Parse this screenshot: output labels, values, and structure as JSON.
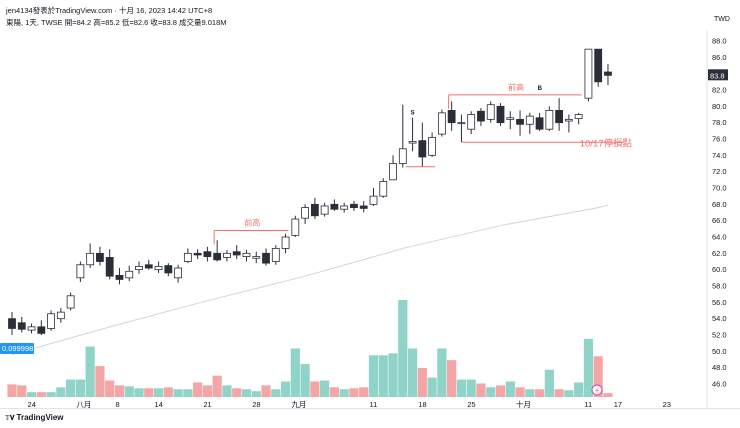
{
  "header": {
    "title_line": "jen4134發表於TradingView.com · 十月 16, 2023 14:42 UTC+8",
    "symbol_line": "東陽, 1天, TWSE  開=84.2  高=85.2  低=82.6  收=83.8  成交量9.018M",
    "currency": "TWD"
  },
  "footer": {
    "logo_text": "TradingView"
  },
  "chart_data": {
    "type": "candlestick",
    "ylim": [
      44,
      90
    ],
    "yticks": [
      46,
      48,
      50,
      52,
      54,
      56,
      58,
      60,
      62,
      64,
      66,
      68,
      70,
      72,
      74,
      76,
      78,
      80,
      82,
      84,
      86,
      88
    ],
    "xtick_labels": [
      {
        "label": "24",
        "idx": 2
      },
      {
        "label": "八月",
        "idx": 7
      },
      {
        "label": "8",
        "idx": 11
      },
      {
        "label": "14",
        "idx": 15
      },
      {
        "label": "21",
        "idx": 20
      },
      {
        "label": "28",
        "idx": 25
      },
      {
        "label": "九月",
        "idx": 29
      },
      {
        "label": "11",
        "idx": 37
      },
      {
        "label": "18",
        "idx": 42
      },
      {
        "label": "25",
        "idx": 47
      },
      {
        "label": "十月",
        "idx": 52
      },
      {
        "label": "11",
        "idx": 59
      },
      {
        "label": "17",
        "idx": 62
      },
      {
        "label": "23",
        "idx": 67
      }
    ],
    "candles": [
      {
        "o": 54.0,
        "h": 54.8,
        "l": 52.0,
        "c": 52.8
      },
      {
        "o": 53.5,
        "h": 54.2,
        "l": 52.3,
        "c": 52.7
      },
      {
        "o": 52.6,
        "h": 53.4,
        "l": 52.2,
        "c": 53.0
      },
      {
        "o": 53.0,
        "h": 53.8,
        "l": 52.0,
        "c": 52.2
      },
      {
        "o": 52.8,
        "h": 55.0,
        "l": 52.5,
        "c": 54.6
      },
      {
        "o": 54.0,
        "h": 55.3,
        "l": 53.5,
        "c": 54.8
      },
      {
        "o": 55.3,
        "h": 57.2,
        "l": 55.0,
        "c": 56.8
      },
      {
        "o": 59.0,
        "h": 61.0,
        "l": 58.5,
        "c": 60.6
      },
      {
        "o": 60.6,
        "h": 63.2,
        "l": 60.2,
        "c": 62.0
      },
      {
        "o": 62.0,
        "h": 62.8,
        "l": 60.5,
        "c": 61.0
      },
      {
        "o": 61.5,
        "h": 62.5,
        "l": 58.8,
        "c": 59.2
      },
      {
        "o": 59.3,
        "h": 60.2,
        "l": 58.2,
        "c": 58.8
      },
      {
        "o": 59.0,
        "h": 60.5,
        "l": 58.6,
        "c": 59.8
      },
      {
        "o": 60.0,
        "h": 61.0,
        "l": 59.5,
        "c": 60.4
      },
      {
        "o": 60.6,
        "h": 61.2,
        "l": 60.0,
        "c": 60.2
      },
      {
        "o": 60.0,
        "h": 61.0,
        "l": 59.6,
        "c": 60.4
      },
      {
        "o": 60.5,
        "h": 60.8,
        "l": 59.2,
        "c": 59.6
      },
      {
        "o": 59.0,
        "h": 60.6,
        "l": 58.4,
        "c": 60.2
      },
      {
        "o": 61.0,
        "h": 62.6,
        "l": 60.8,
        "c": 62.0
      },
      {
        "o": 62.0,
        "h": 62.5,
        "l": 61.3,
        "c": 61.8
      },
      {
        "o": 62.2,
        "h": 62.8,
        "l": 61.0,
        "c": 61.6
      },
      {
        "o": 62.0,
        "h": 63.6,
        "l": 61.0,
        "c": 61.2
      },
      {
        "o": 61.5,
        "h": 62.4,
        "l": 61.0,
        "c": 62.0
      },
      {
        "o": 62.2,
        "h": 63.0,
        "l": 61.3,
        "c": 61.8
      },
      {
        "o": 61.6,
        "h": 62.4,
        "l": 61.0,
        "c": 62.0
      },
      {
        "o": 61.4,
        "h": 62.2,
        "l": 60.8,
        "c": 61.6
      },
      {
        "o": 62.0,
        "h": 62.6,
        "l": 60.5,
        "c": 60.8
      },
      {
        "o": 61.0,
        "h": 63.0,
        "l": 60.6,
        "c": 62.6
      },
      {
        "o": 62.6,
        "h": 64.4,
        "l": 62.0,
        "c": 64.0
      },
      {
        "o": 64.2,
        "h": 66.6,
        "l": 64.0,
        "c": 66.2
      },
      {
        "o": 66.3,
        "h": 68.0,
        "l": 65.6,
        "c": 67.6
      },
      {
        "o": 68.0,
        "h": 68.8,
        "l": 66.2,
        "c": 66.6
      },
      {
        "o": 66.8,
        "h": 68.2,
        "l": 66.5,
        "c": 67.8
      },
      {
        "o": 68.0,
        "h": 68.6,
        "l": 67.2,
        "c": 67.4
      },
      {
        "o": 67.4,
        "h": 68.2,
        "l": 67.0,
        "c": 67.8
      },
      {
        "o": 68.0,
        "h": 68.4,
        "l": 67.2,
        "c": 67.6
      },
      {
        "o": 67.8,
        "h": 68.4,
        "l": 67.0,
        "c": 67.5
      },
      {
        "o": 68.0,
        "h": 70.0,
        "l": 67.8,
        "c": 69.0
      },
      {
        "o": 69.0,
        "h": 71.2,
        "l": 68.8,
        "c": 70.8
      },
      {
        "o": 71.0,
        "h": 74.0,
        "l": 71.0,
        "c": 73.0
      },
      {
        "o": 73.0,
        "h": 80.2,
        "l": 72.5,
        "c": 74.8
      },
      {
        "o": 75.5,
        "h": 78.6,
        "l": 74.5,
        "c": 75.7
      },
      {
        "o": 75.8,
        "h": 78.0,
        "l": 72.6,
        "c": 73.8
      },
      {
        "o": 74.0,
        "h": 76.8,
        "l": 73.8,
        "c": 76.2
      },
      {
        "o": 76.6,
        "h": 79.6,
        "l": 76.3,
        "c": 79.2
      },
      {
        "o": 79.5,
        "h": 80.6,
        "l": 77.0,
        "c": 78.0
      },
      {
        "o": 78.0,
        "h": 79.0,
        "l": 75.6,
        "c": 78.0
      },
      {
        "o": 77.2,
        "h": 79.4,
        "l": 76.6,
        "c": 79.0
      },
      {
        "o": 79.4,
        "h": 79.8,
        "l": 77.6,
        "c": 78.2
      },
      {
        "o": 78.4,
        "h": 80.6,
        "l": 78.0,
        "c": 80.2
      },
      {
        "o": 80.0,
        "h": 80.4,
        "l": 77.6,
        "c": 78.0
      },
      {
        "o": 78.4,
        "h": 79.4,
        "l": 77.2,
        "c": 78.6
      },
      {
        "o": 78.4,
        "h": 79.5,
        "l": 76.4,
        "c": 77.8
      },
      {
        "o": 77.8,
        "h": 79.2,
        "l": 76.6,
        "c": 78.8
      },
      {
        "o": 78.6,
        "h": 79.2,
        "l": 77.0,
        "c": 77.2
      },
      {
        "o": 77.2,
        "h": 80.0,
        "l": 77.0,
        "c": 79.5
      },
      {
        "o": 79.5,
        "h": 81.0,
        "l": 77.0,
        "c": 78.0
      },
      {
        "o": 78.2,
        "h": 79.0,
        "l": 76.8,
        "c": 78.4
      },
      {
        "o": 78.5,
        "h": 79.2,
        "l": 77.8,
        "c": 79.0
      },
      {
        "o": 81.0,
        "h": 87.0,
        "l": 80.6,
        "c": 87.0
      },
      {
        "o": 87.0,
        "h": 87.0,
        "l": 82.4,
        "c": 83.0
      },
      {
        "o": 84.2,
        "h": 85.2,
        "l": 82.6,
        "c": 83.8
      }
    ],
    "volume_bar_heights": [
      0.13,
      0.12,
      0.05,
      0.05,
      0.05,
      0.1,
      0.18,
      0.18,
      0.52,
      0.32,
      0.17,
      0.12,
      0.11,
      0.09,
      0.09,
      0.09,
      0.1,
      0.08,
      0.08,
      0.15,
      0.12,
      0.22,
      0.12,
      0.09,
      0.08,
      0.06,
      0.12,
      0.08,
      0.16,
      0.5,
      0.34,
      0.16,
      0.17,
      0.1,
      0.08,
      0.09,
      0.1,
      0.43,
      0.43,
      0.45,
      1.0,
      0.5,
      0.3,
      0.2,
      0.5,
      0.38,
      0.18,
      0.18,
      0.14,
      0.1,
      0.12,
      0.16,
      0.1,
      0.08,
      0.08,
      0.28,
      0.08,
      0.07,
      0.15,
      0.6,
      0.42,
      0.04
    ],
    "moving_average": [
      {
        "idx": 0,
        "v": 49.6
      },
      {
        "idx": 10,
        "v": 53.0
      },
      {
        "idx": 20,
        "v": 56.2
      },
      {
        "idx": 30,
        "v": 59.2
      },
      {
        "idx": 40,
        "v": 62.6
      },
      {
        "idx": 50,
        "v": 65.4
      },
      {
        "idx": 60,
        "v": 67.6
      },
      {
        "idx": 61,
        "v": 67.9
      }
    ],
    "prior_high_lines": [
      {
        "label": "前高",
        "price": 64.8,
        "from": 21,
        "to": 28
      },
      {
        "label": "前高",
        "price": 81.4,
        "from": 45,
        "to": 58
      }
    ],
    "stop_line": {
      "label": "10/17停損點",
      "price": 75.6,
      "from": 46,
      "to": 62
    },
    "short_line": {
      "price": 72.6,
      "from": 40,
      "to": 43
    },
    "markers": [
      {
        "text": "S",
        "idx": 41,
        "price": 79.0
      },
      {
        "text": "B",
        "idx": 54,
        "price": 82.0
      }
    ],
    "current_price_label": "83.8",
    "left_price_label": "0.099998",
    "colors": {
      "up": "#ffffff",
      "down": "#2a2e39",
      "outline": "#2a2e39",
      "vol_up": "#8fd3c9",
      "vol_down": "#f4a6a6",
      "ma": "#d4d4d4",
      "annotation": "#f2726f"
    }
  }
}
